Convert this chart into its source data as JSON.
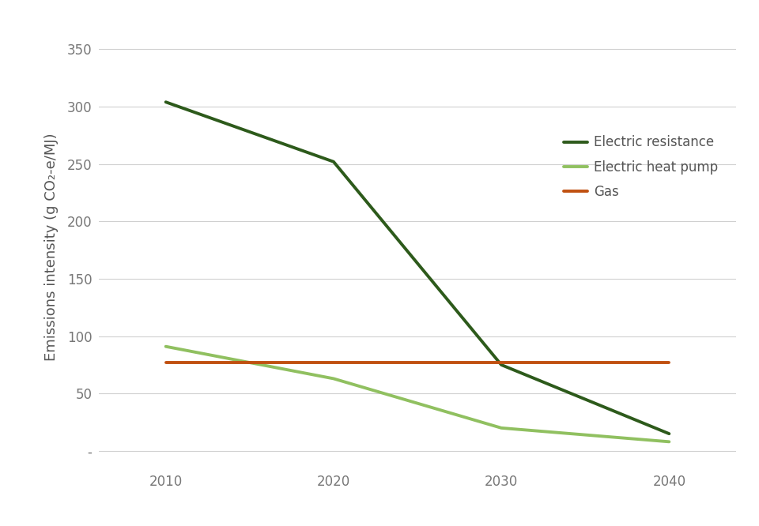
{
  "years": [
    2010,
    2020,
    2030,
    2040
  ],
  "electric_resistance": [
    304,
    252,
    75,
    15
  ],
  "electric_heat_pump": [
    91,
    63,
    20,
    8
  ],
  "gas": [
    77,
    77,
    77,
    77
  ],
  "colors": {
    "electric_resistance": "#2d5a1b",
    "electric_heat_pump": "#90c060",
    "gas": "#c05010"
  },
  "labels": {
    "electric_resistance": "Electric resistance",
    "electric_heat_pump": "Electric heat pump",
    "gas": "Gas"
  },
  "ylabel": "Emissions intensity (g CO₂-e/MJ)",
  "yticks": [
    0,
    50,
    100,
    150,
    200,
    250,
    300,
    350
  ],
  "ytick_labels": [
    "-",
    "50",
    "100",
    "150",
    "200",
    "250",
    "300",
    "350"
  ],
  "xticks": [
    2010,
    2020,
    2030,
    2040
  ],
  "ylim": [
    -15,
    370
  ],
  "xlim": [
    2006,
    2044
  ],
  "background_color": "#ffffff",
  "grid_color": "#d0d0d0",
  "line_width": 2.8,
  "legend_fontsize": 12,
  "ylabel_fontsize": 13,
  "tick_fontsize": 12,
  "tick_color": "#777777",
  "label_color": "#555555"
}
